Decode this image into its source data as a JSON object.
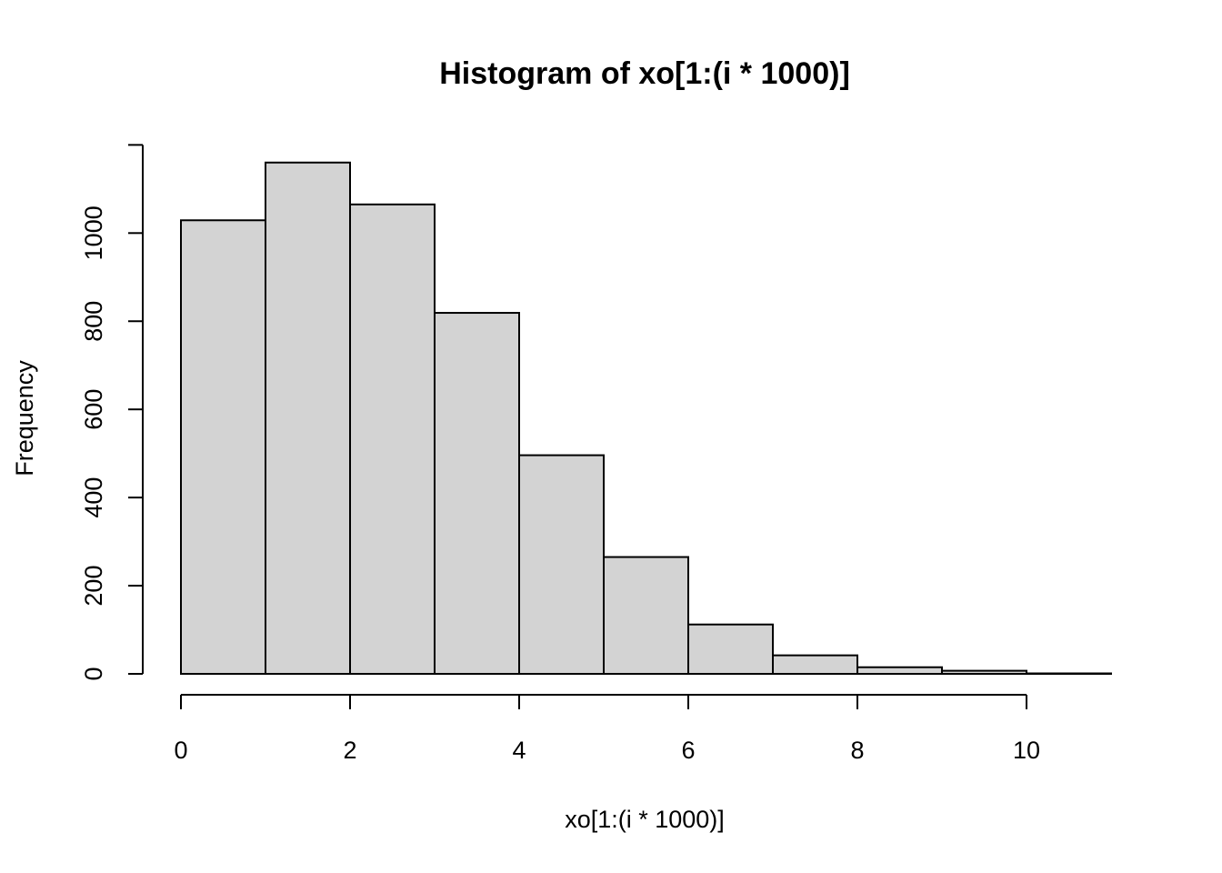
{
  "chart_data": {
    "type": "bar",
    "title": "Histogram of xo[1:(i * 1000)]",
    "xlabel": "xo[1:(i * 1000)]",
    "ylabel": "Frequency",
    "bins": [
      {
        "from": 0,
        "to": 1,
        "count": 1029
      },
      {
        "from": 1,
        "to": 2,
        "count": 1160
      },
      {
        "from": 2,
        "to": 3,
        "count": 1065
      },
      {
        "from": 3,
        "to": 4,
        "count": 819
      },
      {
        "from": 4,
        "to": 5,
        "count": 496
      },
      {
        "from": 5,
        "to": 6,
        "count": 265
      },
      {
        "from": 6,
        "to": 7,
        "count": 112
      },
      {
        "from": 7,
        "to": 8,
        "count": 42
      },
      {
        "from": 8,
        "to": 9,
        "count": 15
      },
      {
        "from": 9,
        "to": 10,
        "count": 7
      },
      {
        "from": 10,
        "to": 11,
        "count": 1
      }
    ],
    "x_ticks": [
      0,
      2,
      4,
      6,
      8,
      10
    ],
    "x_tick_labels": [
      "0",
      "2",
      "4",
      "6",
      "8",
      "10"
    ],
    "y_ticks": [
      0,
      200,
      400,
      600,
      800,
      1000
    ],
    "y_tick_labels": [
      "0",
      "200",
      "400",
      "600",
      "800",
      "1000"
    ],
    "xlim": [
      0,
      11
    ],
    "ylim": [
      0,
      1200
    ],
    "grid": false,
    "colors": {
      "bar_fill": "#d3d3d3",
      "bar_stroke": "#000000"
    }
  }
}
